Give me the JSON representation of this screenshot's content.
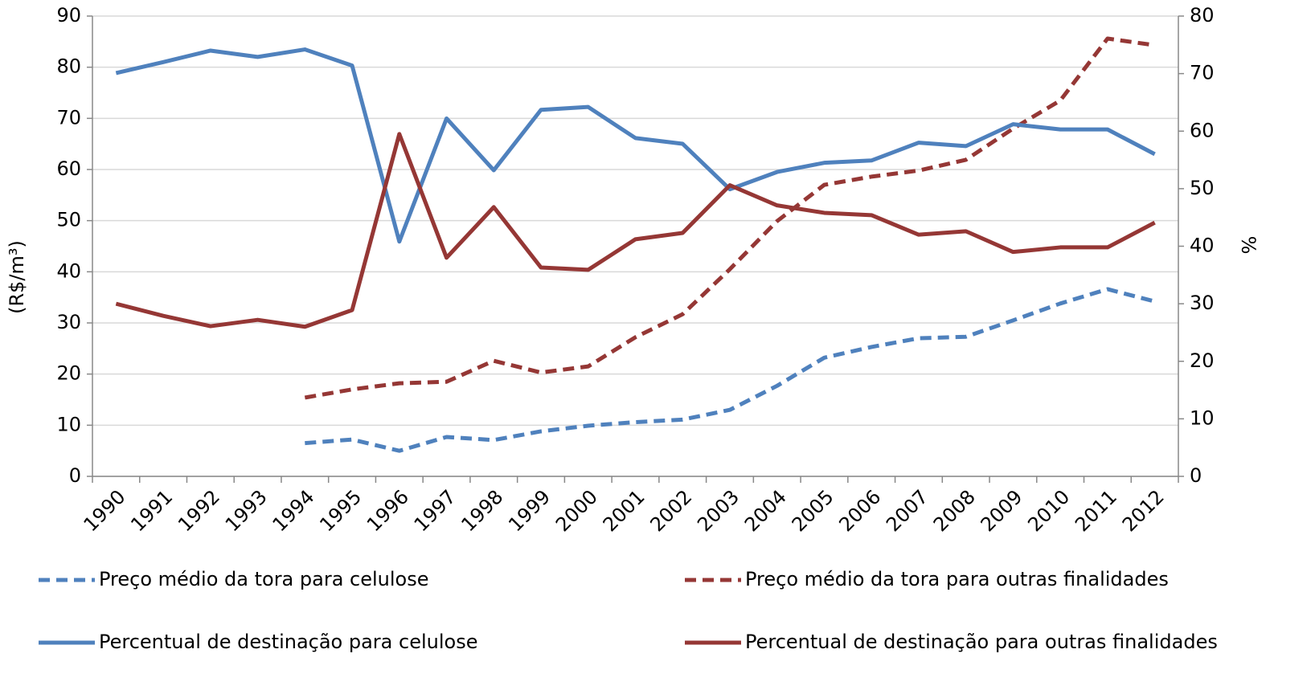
{
  "chart_data": {
    "type": "line",
    "categories": [
      "1990",
      "1991",
      "1992",
      "1993",
      "1994",
      "1995",
      "1996",
      "1997",
      "1998",
      "1999",
      "2000",
      "2001",
      "2002",
      "2003",
      "2004",
      "2005",
      "2006",
      "2007",
      "2008",
      "2009",
      "2010",
      "2011",
      "2012"
    ],
    "ylabel": "(R$/m³)",
    "y2label": "%",
    "ylim": [
      0,
      90
    ],
    "yticks": [
      0,
      10,
      20,
      30,
      40,
      50,
      60,
      70,
      80,
      90
    ],
    "y2lim": [
      0,
      80
    ],
    "y2ticks": [
      0,
      10,
      20,
      30,
      40,
      50,
      60,
      70,
      80
    ],
    "grid": true,
    "series": [
      {
        "name": "Preço médio da tora para celulose",
        "color": "#4f81bd",
        "dashed": true,
        "axis": "y",
        "values": [
          null,
          null,
          null,
          null,
          6.5,
          7.2,
          5.0,
          7.7,
          7.1,
          8.8,
          9.9,
          10.6,
          11.1,
          13.0,
          17.7,
          23.2,
          25.3,
          27.0,
          27.3,
          30.5,
          33.8,
          36.6,
          34.2
        ]
      },
      {
        "name": "Preço médio da tora para outras finalidades",
        "color": "#953735",
        "dashed": true,
        "axis": "y",
        "values": [
          null,
          null,
          null,
          null,
          15.4,
          17.0,
          18.2,
          18.5,
          22.6,
          20.3,
          21.5,
          27.2,
          31.7,
          40.5,
          49.9,
          57.0,
          58.6,
          59.8,
          61.9,
          68.0,
          73.5,
          85.6,
          84.3
        ]
      },
      {
        "name": "Percentual de destinação para celulose",
        "color": "#4f81bd",
        "dashed": false,
        "axis": "y2",
        "values": [
          70.1,
          72.0,
          74.0,
          72.9,
          74.2,
          71.4,
          40.8,
          62.2,
          53.2,
          63.7,
          64.2,
          58.8,
          57.8,
          49.9,
          52.9,
          54.5,
          54.9,
          58.0,
          57.4,
          61.2,
          60.3,
          60.3,
          56.0
        ]
      },
      {
        "name": "Percentual de destinação para outras finalidades",
        "color": "#953735",
        "dashed": false,
        "axis": "y2",
        "values": [
          30.0,
          27.9,
          26.1,
          27.2,
          26.0,
          28.9,
          59.5,
          38.0,
          46.8,
          36.3,
          35.9,
          41.2,
          42.3,
          50.6,
          47.1,
          45.8,
          45.4,
          42.0,
          42.6,
          39.0,
          39.8,
          39.8,
          44.1
        ]
      }
    ]
  }
}
